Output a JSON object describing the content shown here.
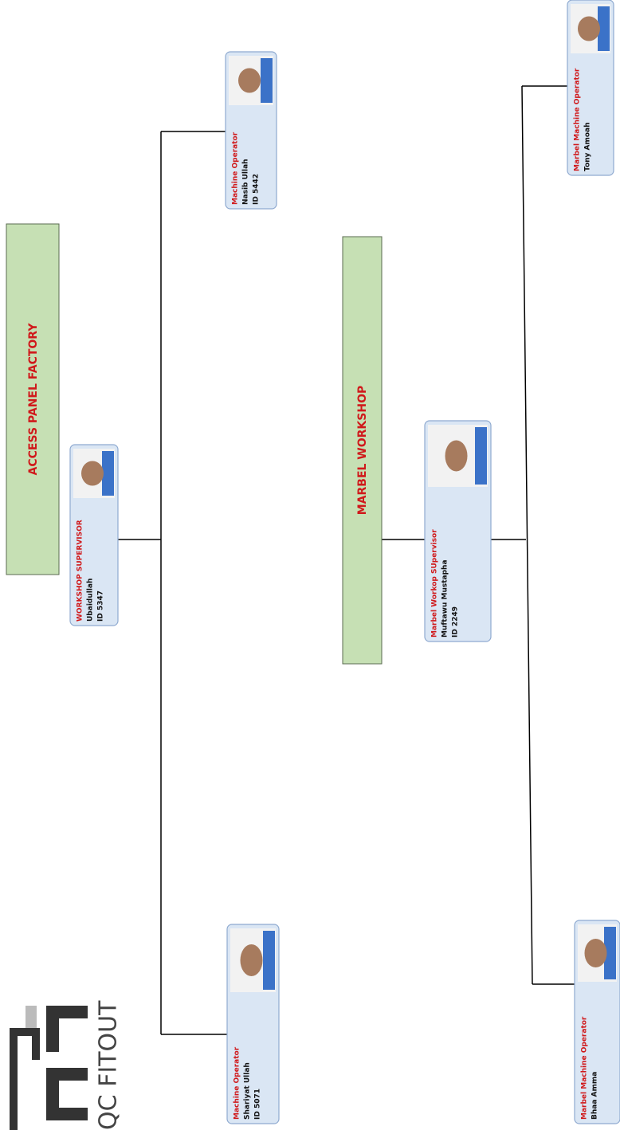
{
  "logo": {
    "text": "QC FITOUT"
  },
  "departments": [
    {
      "title": "ACCESS PANEL FACTORY",
      "supervisor": {
        "role": "WORKSHOP SUPERVISOR",
        "name": "Ubaidullah",
        "id": "ID 5347"
      },
      "members": [
        {
          "role": "Machine Operator",
          "name": "Nasib Ullah",
          "id": "ID 5442"
        },
        {
          "role": "Machine Operator",
          "name": "Shariyat Ullah",
          "id": "ID 5071"
        }
      ]
    },
    {
      "title": "MARBEL WORKSHOP",
      "supervisor": {
        "role": "Marbel Workop SUpervisor",
        "name": "Muftawu Mustapha",
        "id": "ID 2249"
      },
      "members": [
        {
          "role": "Marbel Machine Operator",
          "name": "Tony Amoah"
        },
        {
          "role": "Marbel Machine Operator",
          "name": "Bhaa Amma"
        }
      ]
    }
  ]
}
